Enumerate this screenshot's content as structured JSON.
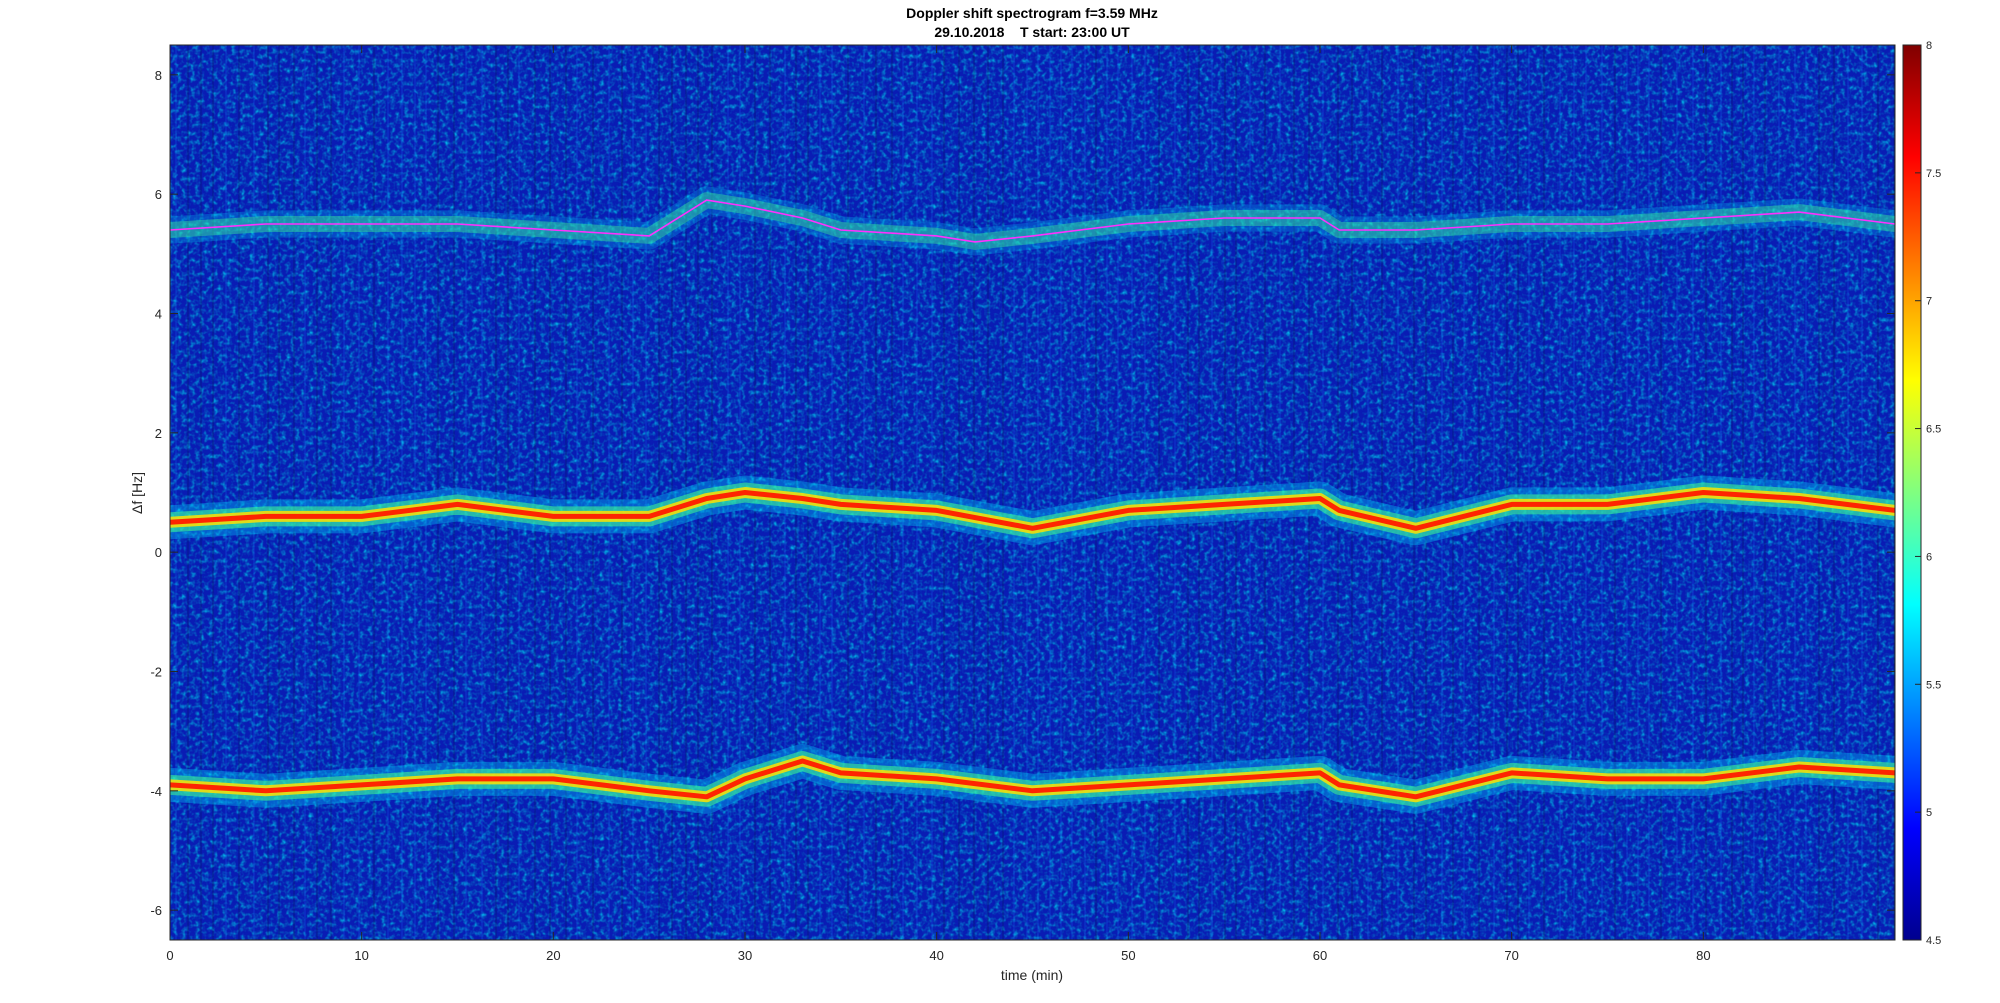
{
  "chart_data": {
    "type": "heatmap",
    "title": "Doppler shift spectrogram f=3.59 MHz",
    "subtitle": "29.10.2018    T start: 23:00 UT",
    "xlabel": "time (min)",
    "ylabel": "Δf [Hz]",
    "xlim": [
      0,
      90
    ],
    "ylim": [
      -6.5,
      8.5
    ],
    "xticks": [
      0,
      10,
      20,
      30,
      40,
      50,
      60,
      70,
      80
    ],
    "yticks": [
      -6,
      -4,
      -2,
      0,
      2,
      4,
      6,
      8
    ],
    "colorbar": {
      "range": [
        4.5,
        8
      ],
      "ticks": [
        4.5,
        5,
        5.5,
        6,
        6.5,
        7,
        7.5,
        8
      ],
      "colormap": "jet",
      "placement": "right"
    },
    "series": [
      {
        "x": [
          0,
          5,
          10,
          15,
          20,
          25,
          28,
          30,
          33,
          35,
          40,
          42,
          45,
          50,
          55,
          60,
          61,
          65,
          70,
          75,
          80,
          85,
          90
        ],
        "y": [
          5.4,
          5.5,
          5.5,
          5.5,
          5.4,
          5.3,
          5.9,
          5.8,
          5.6,
          5.4,
          5.3,
          5.2,
          5.3,
          5.5,
          5.6,
          5.6,
          5.4,
          5.4,
          5.5,
          5.5,
          5.6,
          5.7,
          5.5
        ]
      },
      {
        "x": [
          0,
          5,
          10,
          15,
          20,
          25,
          28,
          30,
          33,
          35,
          40,
          45,
          50,
          55,
          60,
          61,
          65,
          70,
          75,
          80,
          85,
          90
        ],
        "y": [
          0.5,
          0.6,
          0.6,
          0.8,
          0.6,
          0.6,
          0.9,
          1.0,
          0.9,
          0.8,
          0.7,
          0.4,
          0.7,
          0.8,
          0.9,
          0.7,
          0.4,
          0.8,
          0.8,
          1.0,
          0.9,
          0.7
        ]
      },
      {
        "x": [
          0,
          5,
          10,
          15,
          20,
          25,
          28,
          30,
          33,
          35,
          40,
          45,
          50,
          55,
          60,
          61,
          65,
          70,
          75,
          80,
          85,
          90
        ],
        "y": [
          -3.9,
          -4.0,
          -3.9,
          -3.8,
          -3.8,
          -4.0,
          -4.1,
          -3.8,
          -3.5,
          -3.7,
          -3.8,
          -4.0,
          -3.9,
          -3.8,
          -3.7,
          -3.9,
          -4.1,
          -3.7,
          -3.8,
          -3.8,
          -3.6,
          -3.7
        ]
      }
    ]
  }
}
